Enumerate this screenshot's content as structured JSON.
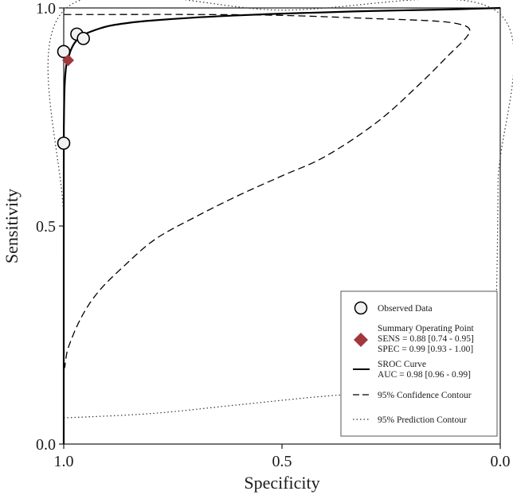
{
  "chart_data": {
    "type": "scatter",
    "title": "",
    "xlabel": "Specificity",
    "ylabel": "Sensitivity",
    "xlim": [
      1.0,
      0.0
    ],
    "ylim": [
      0.0,
      1.0
    ],
    "x_reversed": true,
    "x_ticks": [
      {
        "value": 1.0,
        "label": "1.0"
      },
      {
        "value": 0.5,
        "label": "0.5"
      },
      {
        "value": 0.0,
        "label": "0.0"
      }
    ],
    "y_ticks": [
      {
        "value": 0.0,
        "label": "0.0"
      },
      {
        "value": 0.5,
        "label": "0.5"
      },
      {
        "value": 1.0,
        "label": "1.0"
      }
    ],
    "grid": false,
    "legend_position": "bottom-right",
    "observed": [
      {
        "spec": 1.0,
        "sens": 0.69
      },
      {
        "spec": 1.0,
        "sens": 0.9
      },
      {
        "spec": 0.97,
        "sens": 0.94
      },
      {
        "spec": 0.955,
        "sens": 0.93
      }
    ],
    "summary": {
      "spec": 0.99,
      "sens": 0.88
    },
    "sroc_curve": [
      [
        1.0,
        0.0
      ],
      [
        0.9999,
        0.64
      ],
      [
        0.9995,
        0.74
      ],
      [
        0.998,
        0.82
      ],
      [
        0.994,
        0.87
      ],
      [
        0.99,
        0.88
      ],
      [
        0.985,
        0.9
      ],
      [
        0.975,
        0.92
      ],
      [
        0.96,
        0.935
      ],
      [
        0.94,
        0.945
      ],
      [
        0.9,
        0.958
      ],
      [
        0.85,
        0.966
      ],
      [
        0.8,
        0.971
      ],
      [
        0.7,
        0.978
      ],
      [
        0.6,
        0.983
      ],
      [
        0.5,
        0.987
      ],
      [
        0.4,
        0.99
      ],
      [
        0.3,
        0.993
      ],
      [
        0.2,
        0.995
      ],
      [
        0.1,
        0.997
      ],
      [
        0.0,
        1.0
      ]
    ],
    "confidence_contour": [
      [
        0.999,
        0.985
      ],
      [
        0.9,
        0.985
      ],
      [
        0.7,
        0.985
      ],
      [
        0.5,
        0.983
      ],
      [
        0.3,
        0.976
      ],
      [
        0.15,
        0.97
      ],
      [
        0.09,
        0.962
      ],
      [
        0.07,
        0.95
      ],
      [
        0.08,
        0.93
      ],
      [
        0.12,
        0.89
      ],
      [
        0.18,
        0.83
      ],
      [
        0.28,
        0.74
      ],
      [
        0.4,
        0.66
      ],
      [
        0.5,
        0.615
      ],
      [
        0.6,
        0.57
      ],
      [
        0.7,
        0.52
      ],
      [
        0.79,
        0.47
      ],
      [
        0.86,
        0.41
      ],
      [
        0.92,
        0.35
      ],
      [
        0.96,
        0.29
      ],
      [
        0.99,
        0.22
      ],
      [
        0.999,
        0.18
      ],
      [
        1.0,
        0.33
      ]
    ],
    "prediction_contour": [
      [
        1.0,
        0.06
      ],
      [
        0.8,
        0.07
      ],
      [
        0.6,
        0.09
      ],
      [
        0.4,
        0.11
      ],
      [
        0.24,
        0.12
      ],
      [
        0.14,
        0.13
      ],
      [
        0.06,
        0.15
      ],
      [
        0.02,
        0.2
      ],
      [
        0.01,
        0.3
      ],
      [
        0.005,
        0.6
      ],
      [
        0.005,
        0.99
      ],
      [
        0.5,
        0.995
      ],
      [
        0.999,
        0.995
      ],
      [
        0.9995,
        0.5
      ],
      [
        1.0,
        0.06
      ]
    ],
    "legend": [
      {
        "key": "observed",
        "label": "Observed Data"
      },
      {
        "key": "summary",
        "label": "Summary Operating Point",
        "lines": [
          "SENS = 0.88 [0.74 - 0.95]",
          "SPEC = 0.99 [0.93 - 1.00]"
        ]
      },
      {
        "key": "sroc",
        "label": "SROC Curve",
        "lines": [
          "AUC = 0.98 [0.96 - 0.99]"
        ]
      },
      {
        "key": "confidence",
        "label": "95% Confidence Contour"
      },
      {
        "key": "prediction",
        "label": "95% Prediction Contour"
      }
    ],
    "colors": {
      "axis": "#1a1a1a",
      "curve": "#000000",
      "summary_marker": "#a2373e",
      "observed_fill": "#f2f2f2",
      "legend_border": "#555555"
    }
  }
}
